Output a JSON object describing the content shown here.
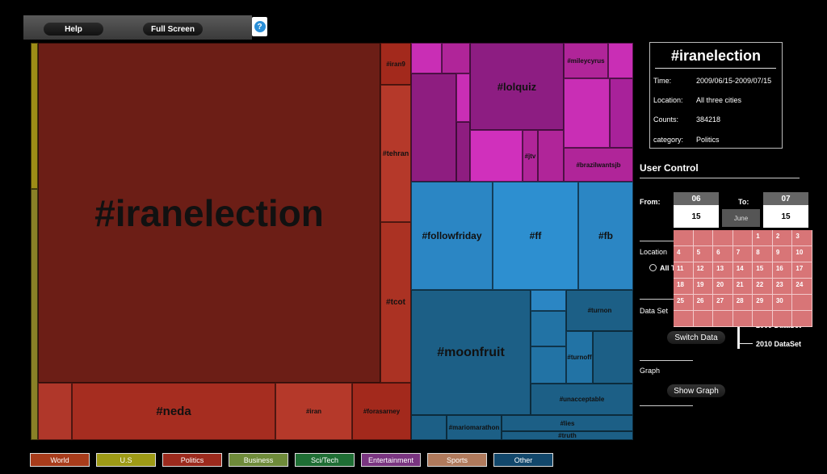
{
  "toolbar": {
    "help_label": "Help",
    "fullscreen_label": "Full Screen",
    "help_icon_glyph": "?"
  },
  "treemap": {
    "cells": [
      {
        "label": "",
        "color": "#9e8d17",
        "l": 0,
        "t": 0,
        "w": 9,
        "h": 181,
        "fs": 9
      },
      {
        "label": "",
        "color": "#8a8127",
        "l": 0,
        "t": 181,
        "w": 9,
        "h": 311,
        "fs": 9
      },
      {
        "label": "#iranelection",
        "color": "#6c1e16",
        "l": 9,
        "t": 0,
        "w": 424,
        "h": 421,
        "fs": 46
      },
      {
        "label": "#iran9",
        "color": "#a3291c",
        "l": 433,
        "t": 0,
        "w": 38,
        "h": 52,
        "fs": 8
      },
      {
        "label": "#tehran",
        "color": "#b5392a",
        "l": 433,
        "t": 52,
        "w": 38,
        "h": 170,
        "fs": 9
      },
      {
        "label": "#tcot",
        "color": "#ab3223",
        "l": 433,
        "t": 222,
        "w": 38,
        "h": 199,
        "fs": 10
      },
      {
        "label": "",
        "color": "#b0372a",
        "l": 9,
        "t": 421,
        "w": 42,
        "h": 71,
        "fs": 9
      },
      {
        "label": "#neda",
        "color": "#a62d20",
        "l": 51,
        "t": 421,
        "w": 252,
        "h": 71,
        "fs": 15
      },
      {
        "label": "#iran",
        "color": "#b5392a",
        "l": 303,
        "t": 421,
        "w": 95,
        "h": 71,
        "fs": 8
      },
      {
        "label": "#forasarney",
        "color": "#a3291c",
        "l": 398,
        "t": 421,
        "w": 73,
        "h": 71,
        "fs": 8
      },
      {
        "label": "",
        "color": "#c92eb5",
        "l": 471,
        "t": 0,
        "w": 38,
        "h": 38,
        "fs": 8
      },
      {
        "label": "",
        "color": "#b02599",
        "l": 509,
        "t": 0,
        "w": 35,
        "h": 38,
        "fs": 8
      },
      {
        "label": "#lolquiz",
        "color": "#8d1d82",
        "l": 544,
        "t": 0,
        "w": 116,
        "h": 108,
        "fs": 13
      },
      {
        "label": "#mileycyrus",
        "color": "#b02599",
        "l": 660,
        "t": 0,
        "w": 55,
        "h": 44,
        "fs": 8
      },
      {
        "label": "",
        "color": "#c92eb5",
        "l": 715,
        "t": 0,
        "w": 31,
        "h": 44,
        "fs": 8
      },
      {
        "label": "",
        "color": "#8e1d80",
        "l": 471,
        "t": 38,
        "w": 56,
        "h": 134,
        "fs": 8
      },
      {
        "label": "",
        "color": "#c92eb5",
        "l": 527,
        "t": 38,
        "w": 17,
        "h": 60,
        "fs": 8
      },
      {
        "label": "",
        "color": "#8e1d80",
        "l": 527,
        "t": 98,
        "w": 17,
        "h": 74,
        "fs": 8
      },
      {
        "label": "",
        "color": "#d030bc",
        "l": 544,
        "t": 108,
        "w": 65,
        "h": 64,
        "fs": 8
      },
      {
        "label": "#jtv",
        "color": "#b02599",
        "l": 609,
        "t": 108,
        "w": 19,
        "h": 64,
        "fs": 8
      },
      {
        "label": "",
        "color": "#b02599",
        "l": 628,
        "t": 108,
        "w": 32,
        "h": 64,
        "fs": 8
      },
      {
        "label": "",
        "color": "#c92eb5",
        "l": 660,
        "t": 44,
        "w": 57,
        "h": 86,
        "fs": 8
      },
      {
        "label": "",
        "color": "#a8229a",
        "l": 717,
        "t": 44,
        "w": 29,
        "h": 86,
        "fs": 8
      },
      {
        "label": "#brazilwantsjb",
        "color": "#b02599",
        "l": 660,
        "t": 130,
        "w": 86,
        "h": 42,
        "fs": 8
      },
      {
        "label": "#followfriday",
        "color": "#2b86c4",
        "l": 471,
        "t": 172,
        "w": 101,
        "h": 134,
        "fs": 12
      },
      {
        "label": "#ff",
        "color": "#2d8fd0",
        "l": 572,
        "t": 172,
        "w": 106,
        "h": 134,
        "fs": 12
      },
      {
        "label": "#fb",
        "color": "#2b86c4",
        "l": 678,
        "t": 172,
        "w": 68,
        "h": 134,
        "fs": 12
      },
      {
        "label": "#moonfruit",
        "color": "#1c5f86",
        "l": 471,
        "t": 306,
        "w": 148,
        "h": 155,
        "fs": 16
      },
      {
        "label": "",
        "color": "#2b86c4",
        "l": 619,
        "t": 306,
        "w": 44,
        "h": 26,
        "fs": 8
      },
      {
        "label": "#turnon",
        "color": "#1c5f86",
        "l": 663,
        "t": 306,
        "w": 83,
        "h": 51,
        "fs": 8
      },
      {
        "label": "",
        "color": "#2273a5",
        "l": 619,
        "t": 332,
        "w": 44,
        "h": 44,
        "fs": 8
      },
      {
        "label": "",
        "color": "#2273a5",
        "l": 619,
        "t": 376,
        "w": 44,
        "h": 46,
        "fs": 8
      },
      {
        "label": "#turnoff",
        "color": "#2273a5",
        "l": 663,
        "t": 357,
        "w": 33,
        "h": 65,
        "fs": 8
      },
      {
        "label": "",
        "color": "#1c5f86",
        "l": 696,
        "t": 357,
        "w": 50,
        "h": 65,
        "fs": 8
      },
      {
        "label": "#unacceptable",
        "color": "#1c5f86",
        "l": 619,
        "t": 422,
        "w": 127,
        "h": 39,
        "fs": 8
      },
      {
        "label": "",
        "color": "#1c5f86",
        "l": 471,
        "t": 461,
        "w": 44,
        "h": 31,
        "fs": 8
      },
      {
        "label": "#mariomarathon",
        "color": "#1c5f86",
        "l": 515,
        "t": 461,
        "w": 68,
        "h": 31,
        "fs": 8
      },
      {
        "label": "#lies",
        "color": "#1c5f86",
        "l": 583,
        "t": 461,
        "w": 163,
        "h": 20,
        "fs": 8
      },
      {
        "label": "#truth",
        "color": "#1c5f86",
        "l": 583,
        "t": 481,
        "w": 163,
        "h": 11,
        "fs": 8
      }
    ]
  },
  "info": {
    "title": "#iranelection",
    "rows": [
      {
        "label": "Time:",
        "value": "2009/06/15-2009/07/15"
      },
      {
        "label": "Location:",
        "value": "All three cities"
      },
      {
        "label": "Counts:",
        "value": "384218"
      },
      {
        "label": "category:",
        "value": "Politics"
      }
    ]
  },
  "control": {
    "title": "User Control",
    "from_label": "From:",
    "to_label": "To:",
    "from_month": "06",
    "from_day": "15",
    "to_month": "07",
    "to_day": "15",
    "calendar_month": "June",
    "location_label": "Location",
    "location_option": "All T",
    "dataset_label": "Data Set",
    "switch_label": "Switch Data",
    "dataset_2009": "2009 DataSet",
    "dataset_2010": "2010 DataSet",
    "graph_label": "Graph",
    "show_graph_label": "Show Graph"
  },
  "calendar": {
    "days": [
      "",
      "",
      "",
      "",
      "1",
      "2",
      "3",
      "4",
      "5",
      "6",
      "7",
      "8",
      "9",
      "10",
      "11",
      "12",
      "13",
      "14",
      "15",
      "16",
      "17",
      "18",
      "19",
      "20",
      "21",
      "22",
      "23",
      "24",
      "25",
      "26",
      "27",
      "28",
      "29",
      "30",
      "",
      "",
      "",
      "",
      "",
      "",
      "",
      ""
    ]
  },
  "legend": [
    {
      "label": "World",
      "color": "#a83c1b"
    },
    {
      "label": "U.S",
      "color": "#9e9a16"
    },
    {
      "label": "Politics",
      "color": "#9c2a1d"
    },
    {
      "label": "Business",
      "color": "#6f8b3a"
    },
    {
      "label": "Sci/Tech",
      "color": "#1f6e34"
    },
    {
      "label": "Entertainment",
      "color": "#7a3580"
    },
    {
      "label": "Sports",
      "color": "#b07a5c"
    },
    {
      "label": "Other",
      "color": "#12476b"
    }
  ]
}
